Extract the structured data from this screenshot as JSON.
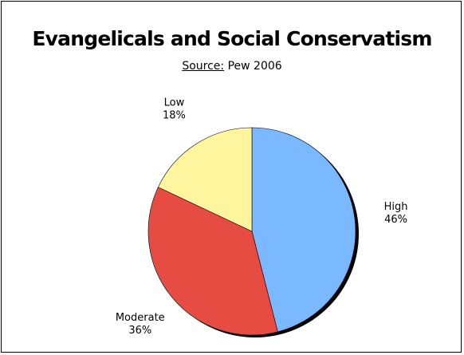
{
  "chart_data": {
    "type": "pie",
    "title": "Evangelicals and Social Conservatism",
    "subtitle": {
      "prefix": "Source:",
      "text": " Pew 2006"
    },
    "slices": [
      {
        "label": "High",
        "value": 46,
        "value_label": "46%",
        "color": "#7ab8ff"
      },
      {
        "label": "Moderate",
        "value": 36,
        "value_label": "36%",
        "color": "#e74c42"
      },
      {
        "label": "Low",
        "value": 18,
        "value_label": "18%",
        "color": "#fef59e"
      }
    ],
    "start_angle": "12 o'clock",
    "direction": "clockwise",
    "legend": "none",
    "border": true,
    "shadow": true
  }
}
